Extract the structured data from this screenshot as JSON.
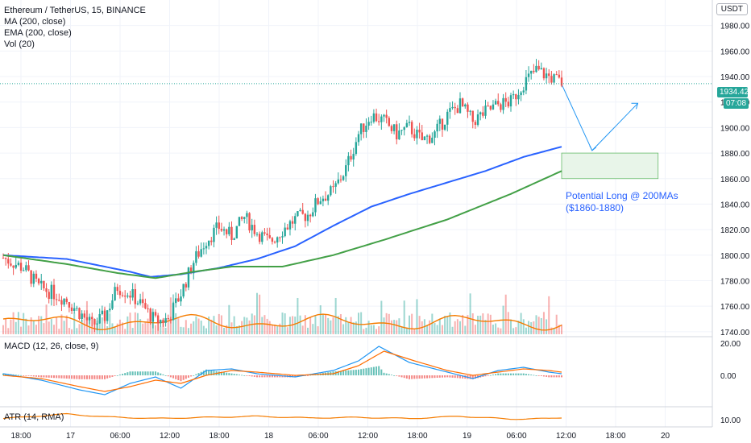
{
  "title": "Ethereum / TetherUS, 15, BINANCE",
  "legend": [
    "MA (200, close)",
    "EMA (200, close)",
    "Vol (20)"
  ],
  "macd_label": "MACD (12, 26, close, 9)",
  "atr_label": "ATR (14, RMA)",
  "currency": "USDT",
  "price_tag": "1934.42",
  "countdown_tag": "07:08",
  "annotation_line1": "Potential Long @ 200MAs",
  "annotation_line2": "($1860-1880)",
  "colors": {
    "up": "#26a69a",
    "down": "#ef5350",
    "ma": "#2962ff",
    "ema": "#43a047",
    "vol_ma": "#f57c00",
    "macd": "#2196f3",
    "signal": "#ff6d00",
    "box": "#c8e6c9"
  },
  "chart_data": [
    {
      "type": "candlestick",
      "title": "Ethereum / TetherUS, 15, BINANCE",
      "x_ticks": [
        "18:00",
        "17",
        "06:00",
        "12:00",
        "18:00",
        "18",
        "06:00",
        "12:00",
        "18:00",
        "19",
        "06:00",
        "12:00",
        "18:00",
        "20"
      ],
      "y_ticks": [
        1740,
        1760,
        1780,
        1800,
        1820,
        1840,
        1860,
        1880,
        1900,
        1920,
        1940,
        1960,
        1980
      ],
      "ylim": [
        1738,
        2000
      ],
      "close_path": [
        [
          0,
          1798
        ],
        [
          8,
          1790
        ],
        [
          14,
          1775
        ],
        [
          20,
          1770
        ],
        [
          25,
          1765
        ],
        [
          30,
          1755
        ],
        [
          35,
          1745
        ],
        [
          40,
          1752
        ],
        [
          45,
          1775
        ],
        [
          50,
          1770
        ],
        [
          55,
          1760
        ],
        [
          60,
          1748
        ],
        [
          65,
          1750
        ],
        [
          70,
          1770
        ],
        [
          75,
          1795
        ],
        [
          80,
          1812
        ],
        [
          85,
          1822
        ],
        [
          90,
          1815
        ],
        [
          95,
          1830
        ],
        [
          100,
          1818
        ],
        [
          105,
          1810
        ],
        [
          110,
          1820
        ],
        [
          115,
          1828
        ],
        [
          120,
          1832
        ],
        [
          125,
          1845
        ],
        [
          130,
          1850
        ],
        [
          135,
          1868
        ],
        [
          140,
          1895
        ],
        [
          145,
          1910
        ],
        [
          150,
          1905
        ],
        [
          155,
          1895
        ],
        [
          160,
          1900
        ],
        [
          165,
          1890
        ],
        [
          170,
          1895
        ],
        [
          175,
          1910
        ],
        [
          180,
          1918
        ],
        [
          185,
          1905
        ],
        [
          190,
          1912
        ],
        [
          195,
          1918
        ],
        [
          200,
          1920
        ],
        [
          205,
          1935
        ],
        [
          210,
          1945
        ],
        [
          215,
          1940
        ],
        [
          220,
          1935
        ]
      ],
      "ma200": [
        [
          0,
          1800
        ],
        [
          25,
          1797
        ],
        [
          50,
          1787
        ],
        [
          58,
          1783
        ],
        [
          70,
          1785
        ],
        [
          85,
          1790
        ],
        [
          100,
          1797
        ],
        [
          115,
          1807
        ],
        [
          130,
          1823
        ],
        [
          145,
          1838
        ],
        [
          160,
          1848
        ],
        [
          175,
          1857
        ],
        [
          190,
          1866
        ],
        [
          205,
          1877
        ],
        [
          220,
          1885
        ]
      ],
      "ema200": [
        [
          0,
          1800
        ],
        [
          25,
          1793
        ],
        [
          45,
          1786
        ],
        [
          60,
          1782
        ],
        [
          75,
          1787
        ],
        [
          90,
          1791
        ],
        [
          110,
          1791
        ],
        [
          130,
          1800
        ],
        [
          150,
          1812
        ],
        [
          175,
          1828
        ],
        [
          200,
          1848
        ],
        [
          220,
          1866
        ]
      ],
      "projection": [
        [
          220,
          1934
        ],
        [
          232,
          1882
        ],
        [
          250,
          1919
        ]
      ],
      "zone": {
        "x_from": 220,
        "x_to": 258,
        "low": 1860,
        "high": 1880
      },
      "annotations": [
        "Potential Long @ 200MAs",
        "($1860-1880)"
      ]
    },
    {
      "type": "line",
      "title": "MACD (12, 26, close, 9)",
      "y_ticks": [
        20,
        0
      ],
      "ylim": [
        -18,
        22
      ],
      "series": [
        {
          "values": [
            [
              0,
              1
            ],
            [
              15,
              -3
            ],
            [
              30,
              -9
            ],
            [
              40,
              -12
            ],
            [
              50,
              -5
            ],
            [
              60,
              -1
            ],
            [
              70,
              -8
            ],
            [
              80,
              3
            ],
            [
              90,
              4
            ],
            [
              100,
              1
            ],
            [
              115,
              -1
            ],
            [
              130,
              3
            ],
            [
              140,
              9
            ],
            [
              148,
              18
            ],
            [
              160,
              8
            ],
            [
              175,
              2
            ],
            [
              185,
              -2
            ],
            [
              195,
              3
            ],
            [
              205,
              5
            ],
            [
              215,
              2
            ],
            [
              220,
              1
            ]
          ]
        },
        {
          "values": [
            [
              0,
              0
            ],
            [
              15,
              -2
            ],
            [
              30,
              -7
            ],
            [
              40,
              -10
            ],
            [
              50,
              -7
            ],
            [
              60,
              -3
            ],
            [
              70,
              -5
            ],
            [
              80,
              0
            ],
            [
              90,
              3
            ],
            [
              100,
              2
            ],
            [
              115,
              0
            ],
            [
              130,
              1
            ],
            [
              140,
              6
            ],
            [
              150,
              15
            ],
            [
              162,
              9
            ],
            [
              175,
              3
            ],
            [
              185,
              0
            ],
            [
              195,
              2
            ],
            [
              205,
              4
            ],
            [
              215,
              3
            ],
            [
              220,
              2
            ]
          ]
        }
      ]
    },
    {
      "type": "line",
      "title": "ATR (14, RMA)",
      "y_ticks": [
        10
      ],
      "ylim": [
        5,
        20
      ],
      "series": [
        {
          "values": [
            [
              0,
              11
            ],
            [
              25,
              15
            ],
            [
              40,
              12.5
            ],
            [
              60,
              11
            ],
            [
              80,
              12
            ],
            [
              100,
              13
            ],
            [
              120,
              11.5
            ],
            [
              140,
              12
            ],
            [
              160,
              11
            ],
            [
              180,
              13
            ],
            [
              200,
              10.5
            ],
            [
              215,
              11
            ],
            [
              220,
              11.8
            ]
          ]
        }
      ]
    }
  ]
}
